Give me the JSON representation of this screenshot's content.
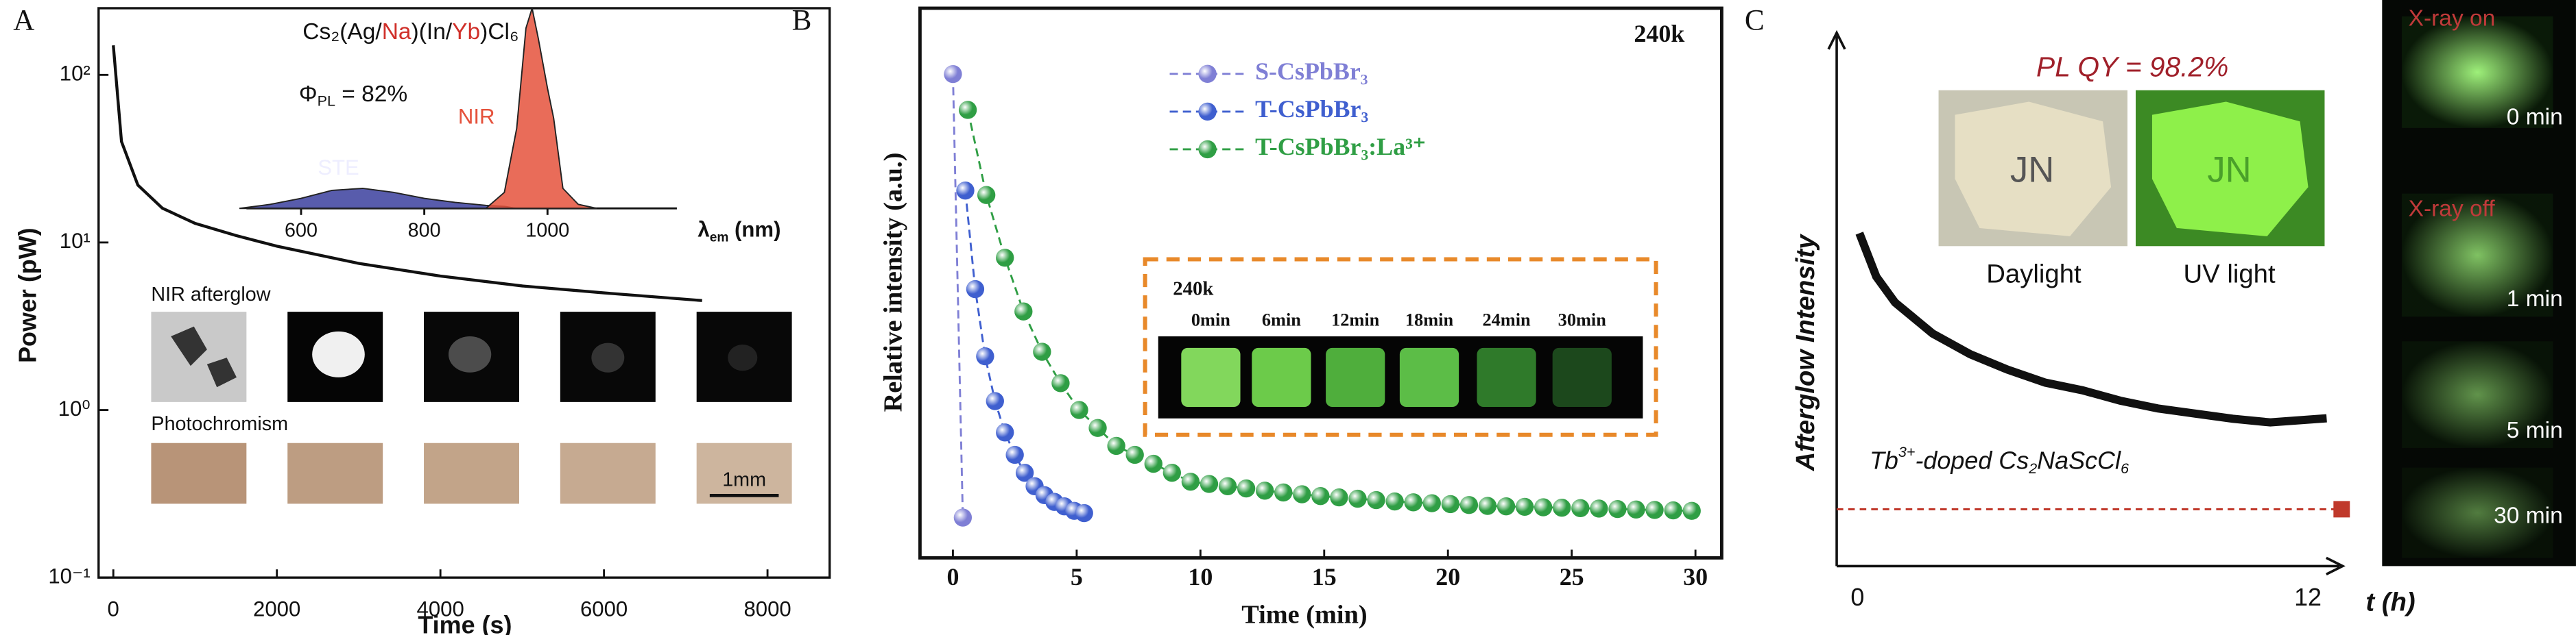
{
  "chart_data": [
    {
      "type": "line",
      "panel": "A",
      "formula": [
        "Cs₂(Ag/",
        "Na",
        ")(In/",
        "Yb",
        ")Cl₆"
      ],
      "quantum_yield": [
        "Φ",
        "PL",
        " = 82%"
      ],
      "image_labels": [
        "NIR afterglow",
        "Photochromism"
      ],
      "scale_bar": "1mm",
      "x_label": "Time (s)",
      "y_label": "Power (pW)",
      "log_y": true,
      "x": [
        0,
        100,
        300,
        600,
        1000,
        1500,
        2000,
        3000,
        4000,
        5000,
        6000,
        7200
      ],
      "values": [
        150,
        40,
        22,
        16,
        13,
        11,
        9.5,
        7.5,
        6.3,
        5.5,
        5,
        4.5
      ],
      "color": "#111111",
      "xlim": [
        -180,
        8760
      ],
      "ylim": [
        0.1,
        250
      ],
      "xticks": [
        0,
        2000,
        4000,
        6000,
        8000
      ],
      "yticks": [
        {
          "value": 0.1,
          "label": "10⁻¹"
        },
        {
          "value": 1,
          "label": "10⁰"
        },
        {
          "value": 10,
          "label": "10¹"
        },
        {
          "value": 100,
          "label": "10²"
        }
      ]
    },
    {
      "type": "area",
      "x_label": [
        "λ",
        "em",
        " (nm)"
      ],
      "x": [
        500,
        550,
        600,
        650,
        700,
        750,
        800,
        850,
        900,
        930,
        950,
        965,
        975,
        985,
        1000,
        1010,
        1025,
        1050,
        1080
      ],
      "series": [
        {
          "name": "STE",
          "color": "#3b3f9e",
          "values": [
            0,
            0.02,
            0.05,
            0.09,
            0.1,
            0.08,
            0.05,
            0.03,
            0.015,
            0.01,
            0,
            0,
            0,
            0,
            0,
            0,
            0,
            0,
            0
          ]
        },
        {
          "name": "NIR",
          "color": "#e5523c",
          "values": [
            0,
            0,
            0,
            0,
            0,
            0,
            0,
            0,
            0,
            0.08,
            0.4,
            0.9,
            1.0,
            0.85,
            0.6,
            0.45,
            0.1,
            0.02,
            0
          ]
        }
      ],
      "xlim": [
        490,
        1210
      ],
      "ylim": [
        0,
        1
      ],
      "xticks": [
        600,
        800,
        1000
      ]
    },
    {
      "type": "scatter",
      "panel": "B",
      "title": "240k",
      "x_label": "Time (min)",
      "y_label": "Relative intensity (a.u.)",
      "series": [
        {
          "name": "S-CsPbBr₃",
          "color": "#7f7fd5",
          "x": [
            0,
            0.4
          ],
          "values": [
            1.0,
            0.01
          ]
        },
        {
          "name": "T-CsPbBr₃",
          "color": "#3f5fcf",
          "x": [
            0.5,
            0.9,
            1.3,
            1.7,
            2.1,
            2.5,
            2.9,
            3.3,
            3.7,
            4.1,
            4.5,
            4.9,
            5.3
          ],
          "values": [
            0.74,
            0.52,
            0.37,
            0.27,
            0.2,
            0.15,
            0.11,
            0.08,
            0.06,
            0.045,
            0.035,
            0.025,
            0.02
          ]
        },
        {
          "name": "T-CsPbBr₃:La³⁺",
          "color": "#2f9e44",
          "x": [
            0.6,
            1.35,
            2.1,
            2.85,
            3.6,
            4.35,
            5.1,
            5.85,
            6.6,
            7.35,
            8.1,
            8.85,
            9.6,
            10.35,
            11.1,
            11.85,
            12.6,
            13.35,
            14.1,
            14.85,
            15.6,
            16.35,
            17.1,
            17.85,
            18.6,
            19.35,
            20.1,
            20.85,
            21.6,
            22.35,
            23.1,
            23.85,
            24.6,
            25.35,
            26.1,
            26.85,
            27.6,
            28.35,
            29.1,
            29.85
          ],
          "values": [
            0.92,
            0.73,
            0.59,
            0.47,
            0.38,
            0.31,
            0.25,
            0.21,
            0.17,
            0.15,
            0.13,
            0.11,
            0.09,
            0.085,
            0.08,
            0.075,
            0.07,
            0.066,
            0.062,
            0.058,
            0.055,
            0.052,
            0.049,
            0.046,
            0.044,
            0.042,
            0.04,
            0.038,
            0.036,
            0.035,
            0.034,
            0.033,
            0.032,
            0.031,
            0.03,
            0.029,
            0.028,
            0.027,
            0.026,
            0.025
          ]
        }
      ],
      "xlim": [
        -1.33,
        31.06
      ],
      "ylim": [
        -0.08,
        1.147
      ],
      "xticks": [
        0,
        5,
        10,
        15,
        20,
        25,
        30
      ],
      "inset": {
        "title": "240k",
        "labels": [
          "0min",
          "6min",
          "12min",
          "18min",
          "24min",
          "30min"
        ]
      }
    },
    {
      "type": "line",
      "panel": "C",
      "x_label": "t (h)",
      "y_label": "Afterglow Intensity",
      "annotation": "PL QY = 98.2%",
      "photo_labels": [
        "Daylight",
        "UV light"
      ],
      "sample_text": "JN",
      "compound": [
        "Tb",
        "3+",
        "-doped Cs",
        "2",
        "NaScCl",
        "6"
      ],
      "xray_labels": [
        "X-ray on",
        "0 min",
        "X-ray off",
        "1 min",
        "5 min",
        "30 min"
      ],
      "x": [
        0.05,
        0.5,
        1,
        2,
        3,
        4,
        5,
        6,
        7,
        8,
        9,
        10,
        11,
        12.5
      ],
      "values": [
        0.644,
        0.56,
        0.51,
        0.45,
        0.41,
        0.38,
        0.355,
        0.34,
        0.32,
        0.305,
        0.295,
        0.285,
        0.278,
        0.286
      ],
      "color": "#111111",
      "xlim": [
        -0.555,
        13.19
      ],
      "ylim": [
        0,
        1
      ],
      "xticks": [
        0,
        12
      ],
      "reference_line": 0.11,
      "reference_color": "#c0392b",
      "reference_marker_x": 12.9
    }
  ]
}
